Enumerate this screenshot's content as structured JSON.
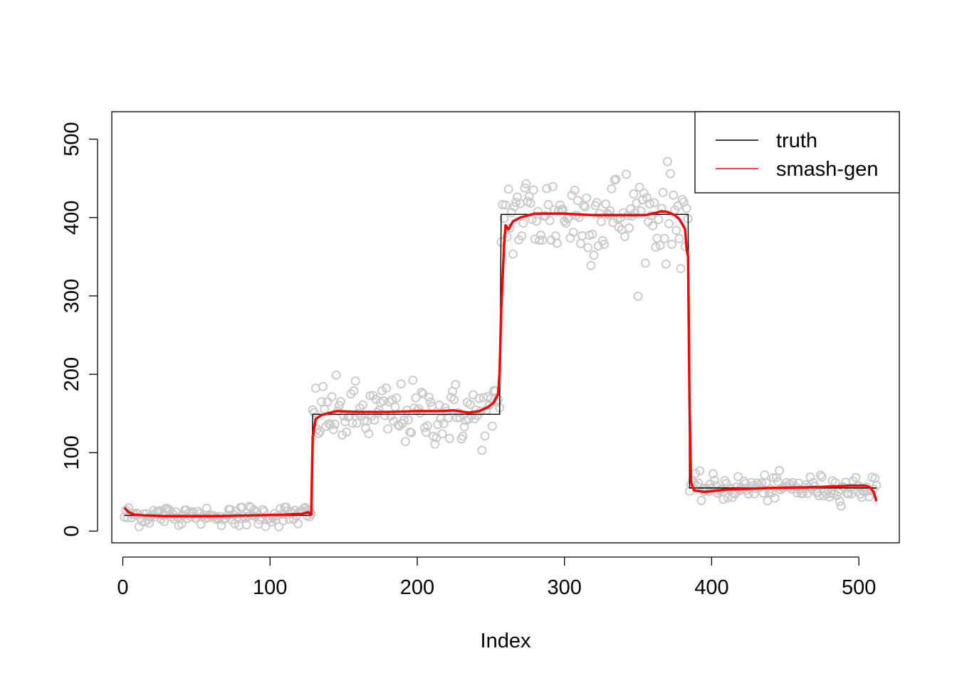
{
  "chart_data": {
    "type": "scatter",
    "title": "",
    "xlabel": "Index",
    "ylabel": "",
    "xlim": [
      -7.5,
      527.5
    ],
    "ylim": [
      -15,
      535
    ],
    "xticks": [
      0,
      100,
      200,
      300,
      400,
      500
    ],
    "yticks": [
      0,
      100,
      200,
      300,
      400,
      500
    ],
    "legend": {
      "position": "top-right",
      "entries": [
        {
          "label": "truth",
          "color": "#000000"
        },
        {
          "label": "smash-gen",
          "color": "#ff0000"
        }
      ]
    },
    "series": [
      {
        "name": "truth",
        "kind": "step",
        "color": "#000000",
        "segments": [
          {
            "x_start": 1,
            "x_end": 128,
            "y": 20
          },
          {
            "x_start": 129,
            "x_end": 256,
            "y": 149
          },
          {
            "x_start": 257,
            "x_end": 384,
            "y": 404
          },
          {
            "x_start": 385,
            "x_end": 512,
            "y": 55
          }
        ]
      },
      {
        "name": "smash-gen",
        "kind": "line",
        "color": "#ff0000",
        "x": [
          1,
          4,
          8,
          15,
          30,
          60,
          90,
          110,
          122,
          126,
          128,
          129,
          131,
          135,
          145,
          160,
          180,
          200,
          215,
          225,
          235,
          242,
          248,
          252,
          255,
          256,
          257,
          259,
          260,
          262,
          265,
          270,
          280,
          300,
          320,
          340,
          355,
          362,
          366,
          370,
          375,
          378,
          380,
          382,
          383,
          384,
          385,
          386,
          388,
          395,
          410,
          440,
          470,
          495,
          505,
          508,
          510,
          512
        ],
        "y": [
          30,
          24,
          21,
          20,
          19,
          19,
          20,
          21,
          22,
          24,
          21,
          120,
          143,
          148,
          153,
          152,
          152,
          153,
          153,
          154,
          151,
          153,
          158,
          164,
          175,
          205,
          280,
          365,
          390,
          385,
          395,
          400,
          405,
          405,
          403,
          403,
          403,
          406,
          408,
          407,
          403,
          398,
          392,
          385,
          360,
          350,
          160,
          62,
          52,
          50,
          53,
          55,
          56,
          58,
          58,
          55,
          50,
          38
        ]
      }
    ],
    "noise_sd": [
      7,
      20,
      30,
      8
    ],
    "points_color": "#c8c8c8",
    "n_points": 512
  }
}
